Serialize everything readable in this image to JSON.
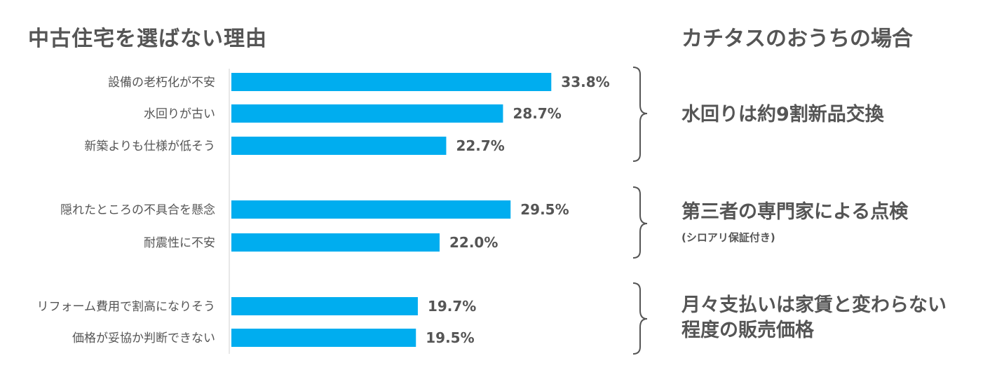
{
  "titles": {
    "left": "中古住宅を選ばない理由",
    "right": "カチタスのおうちの場合"
  },
  "chart_data": {
    "type": "bar",
    "orientation": "horizontal",
    "title": "中古住宅を選ばない理由",
    "categories": [
      "設備の老朽化が不安",
      "水回りが古い",
      "新築よりも仕様が低そう",
      "隠れたところの不具合を懸念",
      "耐震性に不安",
      "リフォーム費用で割高になりそう",
      "価格が妥協か判断できない"
    ],
    "values": [
      33.8,
      28.7,
      22.7,
      29.5,
      22.0,
      19.7,
      19.5
    ],
    "value_labels": [
      "33.8%",
      "28.7%",
      "22.7%",
      "29.5%",
      "22.0%",
      "19.7%",
      "19.5%"
    ],
    "groups": [
      [
        0,
        1,
        2
      ],
      [
        3,
        4
      ],
      [
        5,
        6
      ]
    ],
    "xlim": [
      0,
      100
    ],
    "grid": false,
    "color": "#00adef"
  },
  "notes": [
    {
      "lines": [
        "水回りは約9割新品交換"
      ],
      "sub": ""
    },
    {
      "lines": [
        "第三者の専門家による点検"
      ],
      "sub": "(シロアリ保証付き)"
    },
    {
      "lines": [
        "月々支払いは家賃と変わらない",
        "程度の販売価格"
      ],
      "sub": ""
    }
  ]
}
